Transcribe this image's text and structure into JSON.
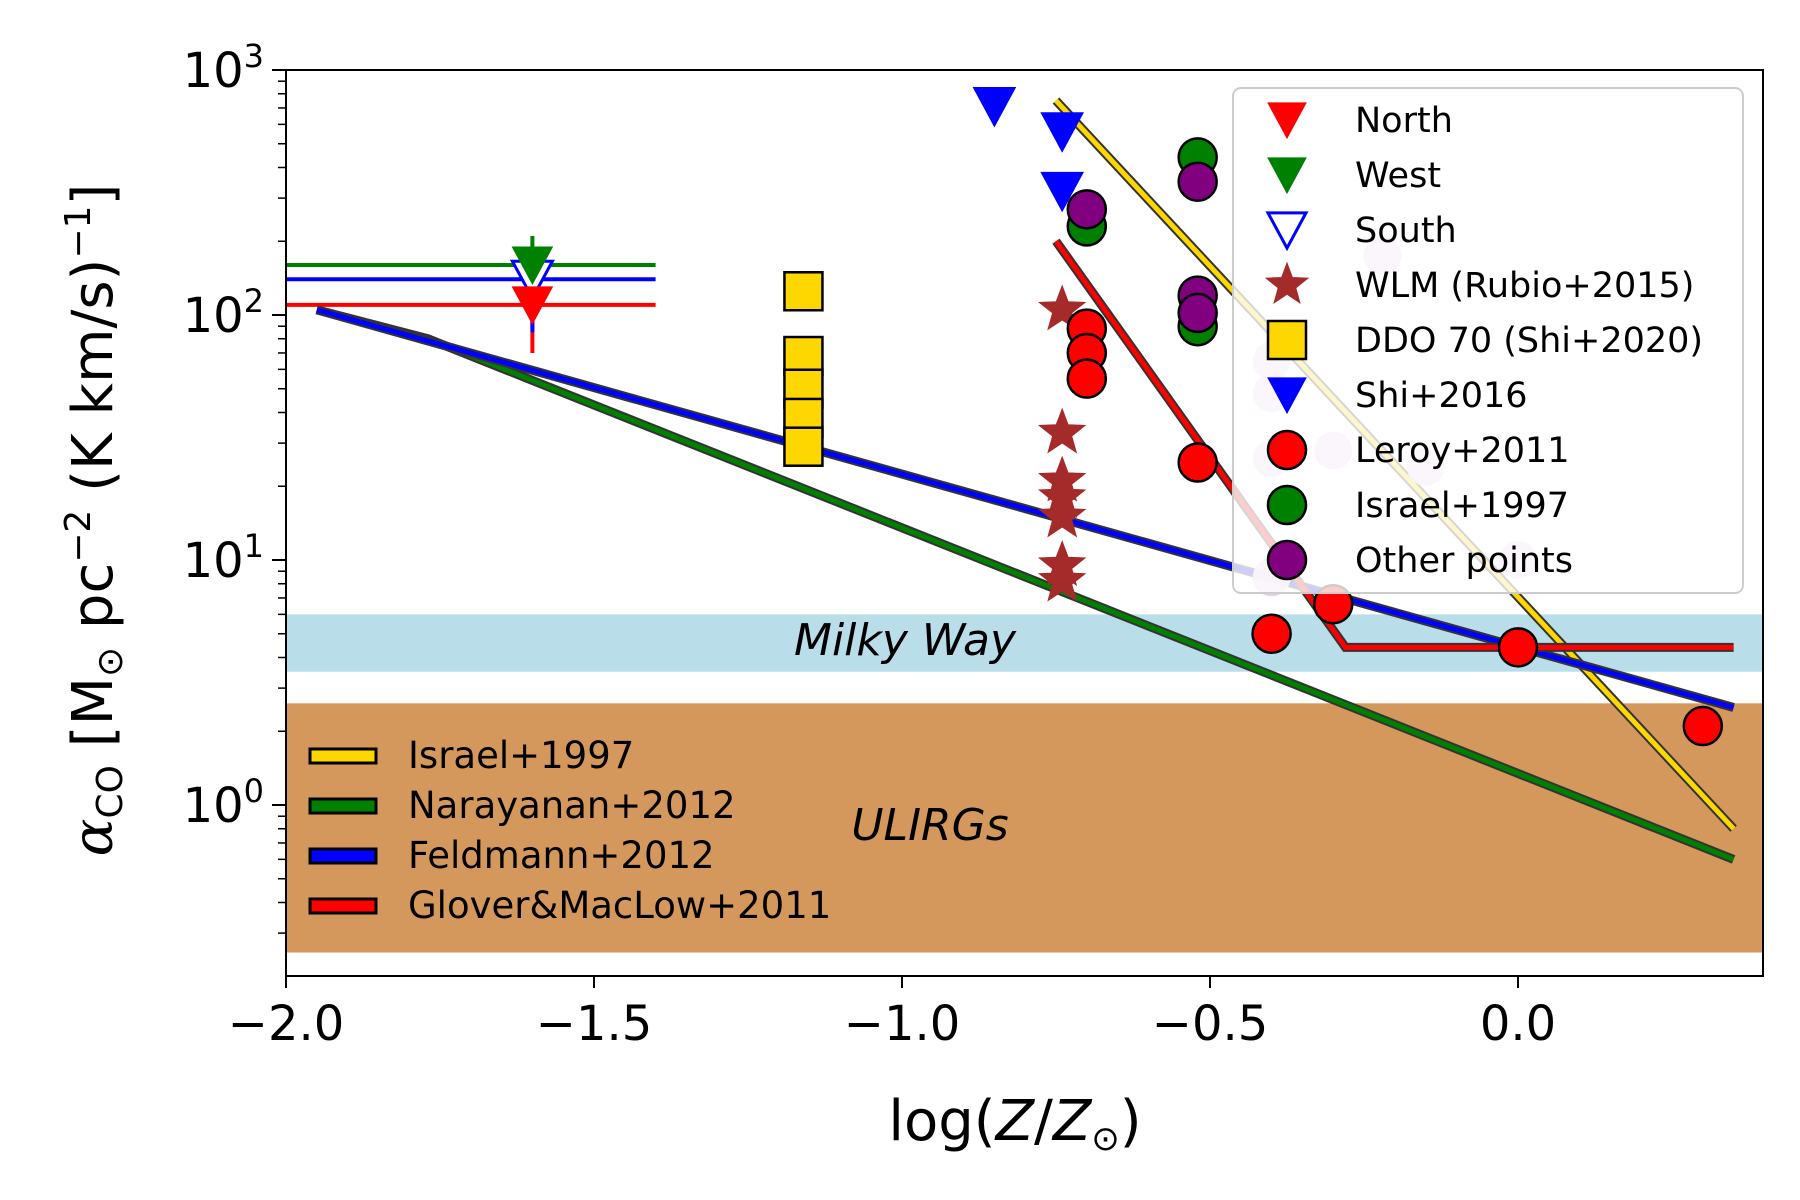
{
  "chart_data": {
    "type": "scatter",
    "title": "",
    "xlabel": "log(Z/Z⊙)",
    "ylabel": "αCO [M⊙ pc−2 (K km/s)−1]",
    "xlim": [
      -2.0,
      0.4
    ],
    "ylim": [
      0.2,
      1000
    ],
    "yscale": "log",
    "xticks": [
      {
        "value": -2.0,
        "label": "−2.0"
      },
      {
        "value": -1.5,
        "label": "−1.5"
      },
      {
        "value": -1.0,
        "label": "−1.0"
      },
      {
        "value": -0.5,
        "label": "−0.5"
      },
      {
        "value": 0.0,
        "label": "0.0"
      }
    ],
    "yticks": [
      {
        "value": 1,
        "base": "10",
        "exp": "0"
      },
      {
        "value": 10,
        "base": "10",
        "exp": "1"
      },
      {
        "value": 100,
        "base": "10",
        "exp": "2"
      },
      {
        "value": 1000,
        "base": "10",
        "exp": "3"
      }
    ],
    "bands": [
      {
        "name": "milky-way-band",
        "label": "Milky Way",
        "ymin": 3.5,
        "ymax": 6.0,
        "color": "#add8e6"
      },
      {
        "name": "ulirgs-band",
        "label": "ULIRGs",
        "ymin": 0.25,
        "ymax": 2.6,
        "color": "#cd853f"
      }
    ],
    "upper_limits": [
      {
        "name": "North",
        "x": -1.6,
        "y": 110,
        "ylow": 70,
        "yhigh": 110,
        "xmin": -2.0,
        "xmax": -1.4,
        "color": "#ff0000"
      },
      {
        "name": "West",
        "x": -1.6,
        "y": 160,
        "ylow": 105,
        "yhigh": 210,
        "xmin": -2.0,
        "xmax": -1.4,
        "color": "#008000"
      },
      {
        "name": "South",
        "x": -1.6,
        "y": 140,
        "ylow": 85,
        "yhigh": 185,
        "xmin": -2.0,
        "xmax": -1.4,
        "color": "#0000ff"
      }
    ],
    "relations": [
      {
        "name": "Israel+1997",
        "color": "#ffd700",
        "x": [
          -0.75,
          0.35
        ],
        "y": [
          750,
          0.8
        ]
      },
      {
        "name": "Narayanan+2012",
        "color": "#008000",
        "x": [
          -1.95,
          -1.77,
          0.35
        ],
        "y": [
          105,
          80,
          0.6
        ]
      },
      {
        "name": "Feldmann+2012",
        "color": "#0000ff",
        "x": [
          -1.95,
          0.35
        ],
        "y": [
          105,
          2.5
        ]
      },
      {
        "name": "Glover&MacLow+2011",
        "color": "#ff0000",
        "x": [
          -0.75,
          -0.28,
          0.35
        ],
        "y": [
          200,
          4.4,
          4.4
        ]
      }
    ],
    "series": [
      {
        "name": "WLM (Rubio+2015)",
        "marker": "star",
        "color": "#a52a2a",
        "points": [
          [
            -0.74,
            105
          ],
          [
            -0.74,
            33
          ],
          [
            -0.74,
            21
          ],
          [
            -0.74,
            18
          ],
          [
            -0.74,
            15
          ],
          [
            -0.74,
            9.5
          ],
          [
            -0.74,
            8.2
          ]
        ]
      },
      {
        "name": "DDO 70 (Shi+2020)",
        "marker": "square",
        "color": "#ffd700",
        "points": [
          [
            -1.16,
            125
          ],
          [
            -1.16,
            68
          ],
          [
            -1.16,
            50
          ],
          [
            -1.16,
            38
          ],
          [
            -1.16,
            29
          ]
        ]
      },
      {
        "name": "Shi+2016",
        "marker": "triangle-down",
        "color": "#0000ff",
        "points": [
          [
            -0.85,
            710
          ],
          [
            -0.74,
            560
          ],
          [
            -0.74,
            320
          ]
        ]
      },
      {
        "name": "Leroy+2011",
        "marker": "circle",
        "color": "#ff0000",
        "points": [
          [
            -0.7,
            88
          ],
          [
            -0.7,
            70
          ],
          [
            -0.7,
            55
          ],
          [
            -0.52,
            25
          ],
          [
            -0.4,
            5.0
          ],
          [
            -0.3,
            6.6
          ],
          [
            0.0,
            4.4
          ],
          [
            0.3,
            2.1
          ]
        ]
      },
      {
        "name": "Israel+1997",
        "marker": "circle",
        "color": "#008000",
        "points": [
          [
            -0.7,
            230
          ],
          [
            -0.52,
            440
          ],
          [
            -0.52,
            90
          ]
        ]
      },
      {
        "name": "Other points",
        "marker": "circle",
        "color": "#800080",
        "points": [
          [
            -0.7,
            270
          ],
          [
            -0.52,
            350
          ],
          [
            -0.52,
            120
          ],
          [
            -0.52,
            102
          ]
        ]
      },
      {
        "name": "faint points",
        "marker": "circle",
        "color": "#e8cce8",
        "in_legend": false,
        "points": [
          [
            -0.22,
            175
          ],
          [
            -0.4,
            65
          ],
          [
            -0.4,
            48
          ],
          [
            -0.3,
            28
          ],
          [
            -0.4,
            26
          ],
          [
            -0.15,
            24
          ],
          [
            -0.4,
            8.5
          ],
          [
            0.0,
            10
          ]
        ]
      }
    ],
    "legend_points": [
      {
        "label": "North",
        "marker": "triangle-down",
        "color": "#ff0000",
        "hollow": false
      },
      {
        "label": "West",
        "marker": "triangle-down",
        "color": "#008000",
        "hollow": false
      },
      {
        "label": "South",
        "marker": "triangle-down",
        "color": "#0000ff",
        "hollow": true
      },
      {
        "label": "WLM (Rubio+2015)",
        "marker": "star",
        "color": "#a52a2a",
        "hollow": false
      },
      {
        "label": "DDO 70 (Shi+2020)",
        "marker": "square",
        "color": "#ffd700",
        "hollow": false
      },
      {
        "label": "Shi+2016",
        "marker": "triangle-down-plain",
        "color": "#0000ff",
        "hollow": false
      },
      {
        "label": "Leroy+2011",
        "marker": "circle",
        "color": "#ff0000",
        "hollow": false
      },
      {
        "label": "Israel+1997",
        "marker": "circle",
        "color": "#008000",
        "hollow": false
      },
      {
        "label": "Other points",
        "marker": "circle",
        "color": "#800080",
        "hollow": false
      }
    ],
    "legend_lines": [
      {
        "label": "Israel+1997",
        "color": "#ffd700"
      },
      {
        "label": "Narayanan+2012",
        "color": "#008000"
      },
      {
        "label": "Feldmann+2012",
        "color": "#0000ff"
      },
      {
        "label": "Glover&MacLow+2011",
        "color": "#ff0000"
      }
    ],
    "legend_placement": {
      "points": "top-right",
      "lines": "lower-left"
    }
  }
}
